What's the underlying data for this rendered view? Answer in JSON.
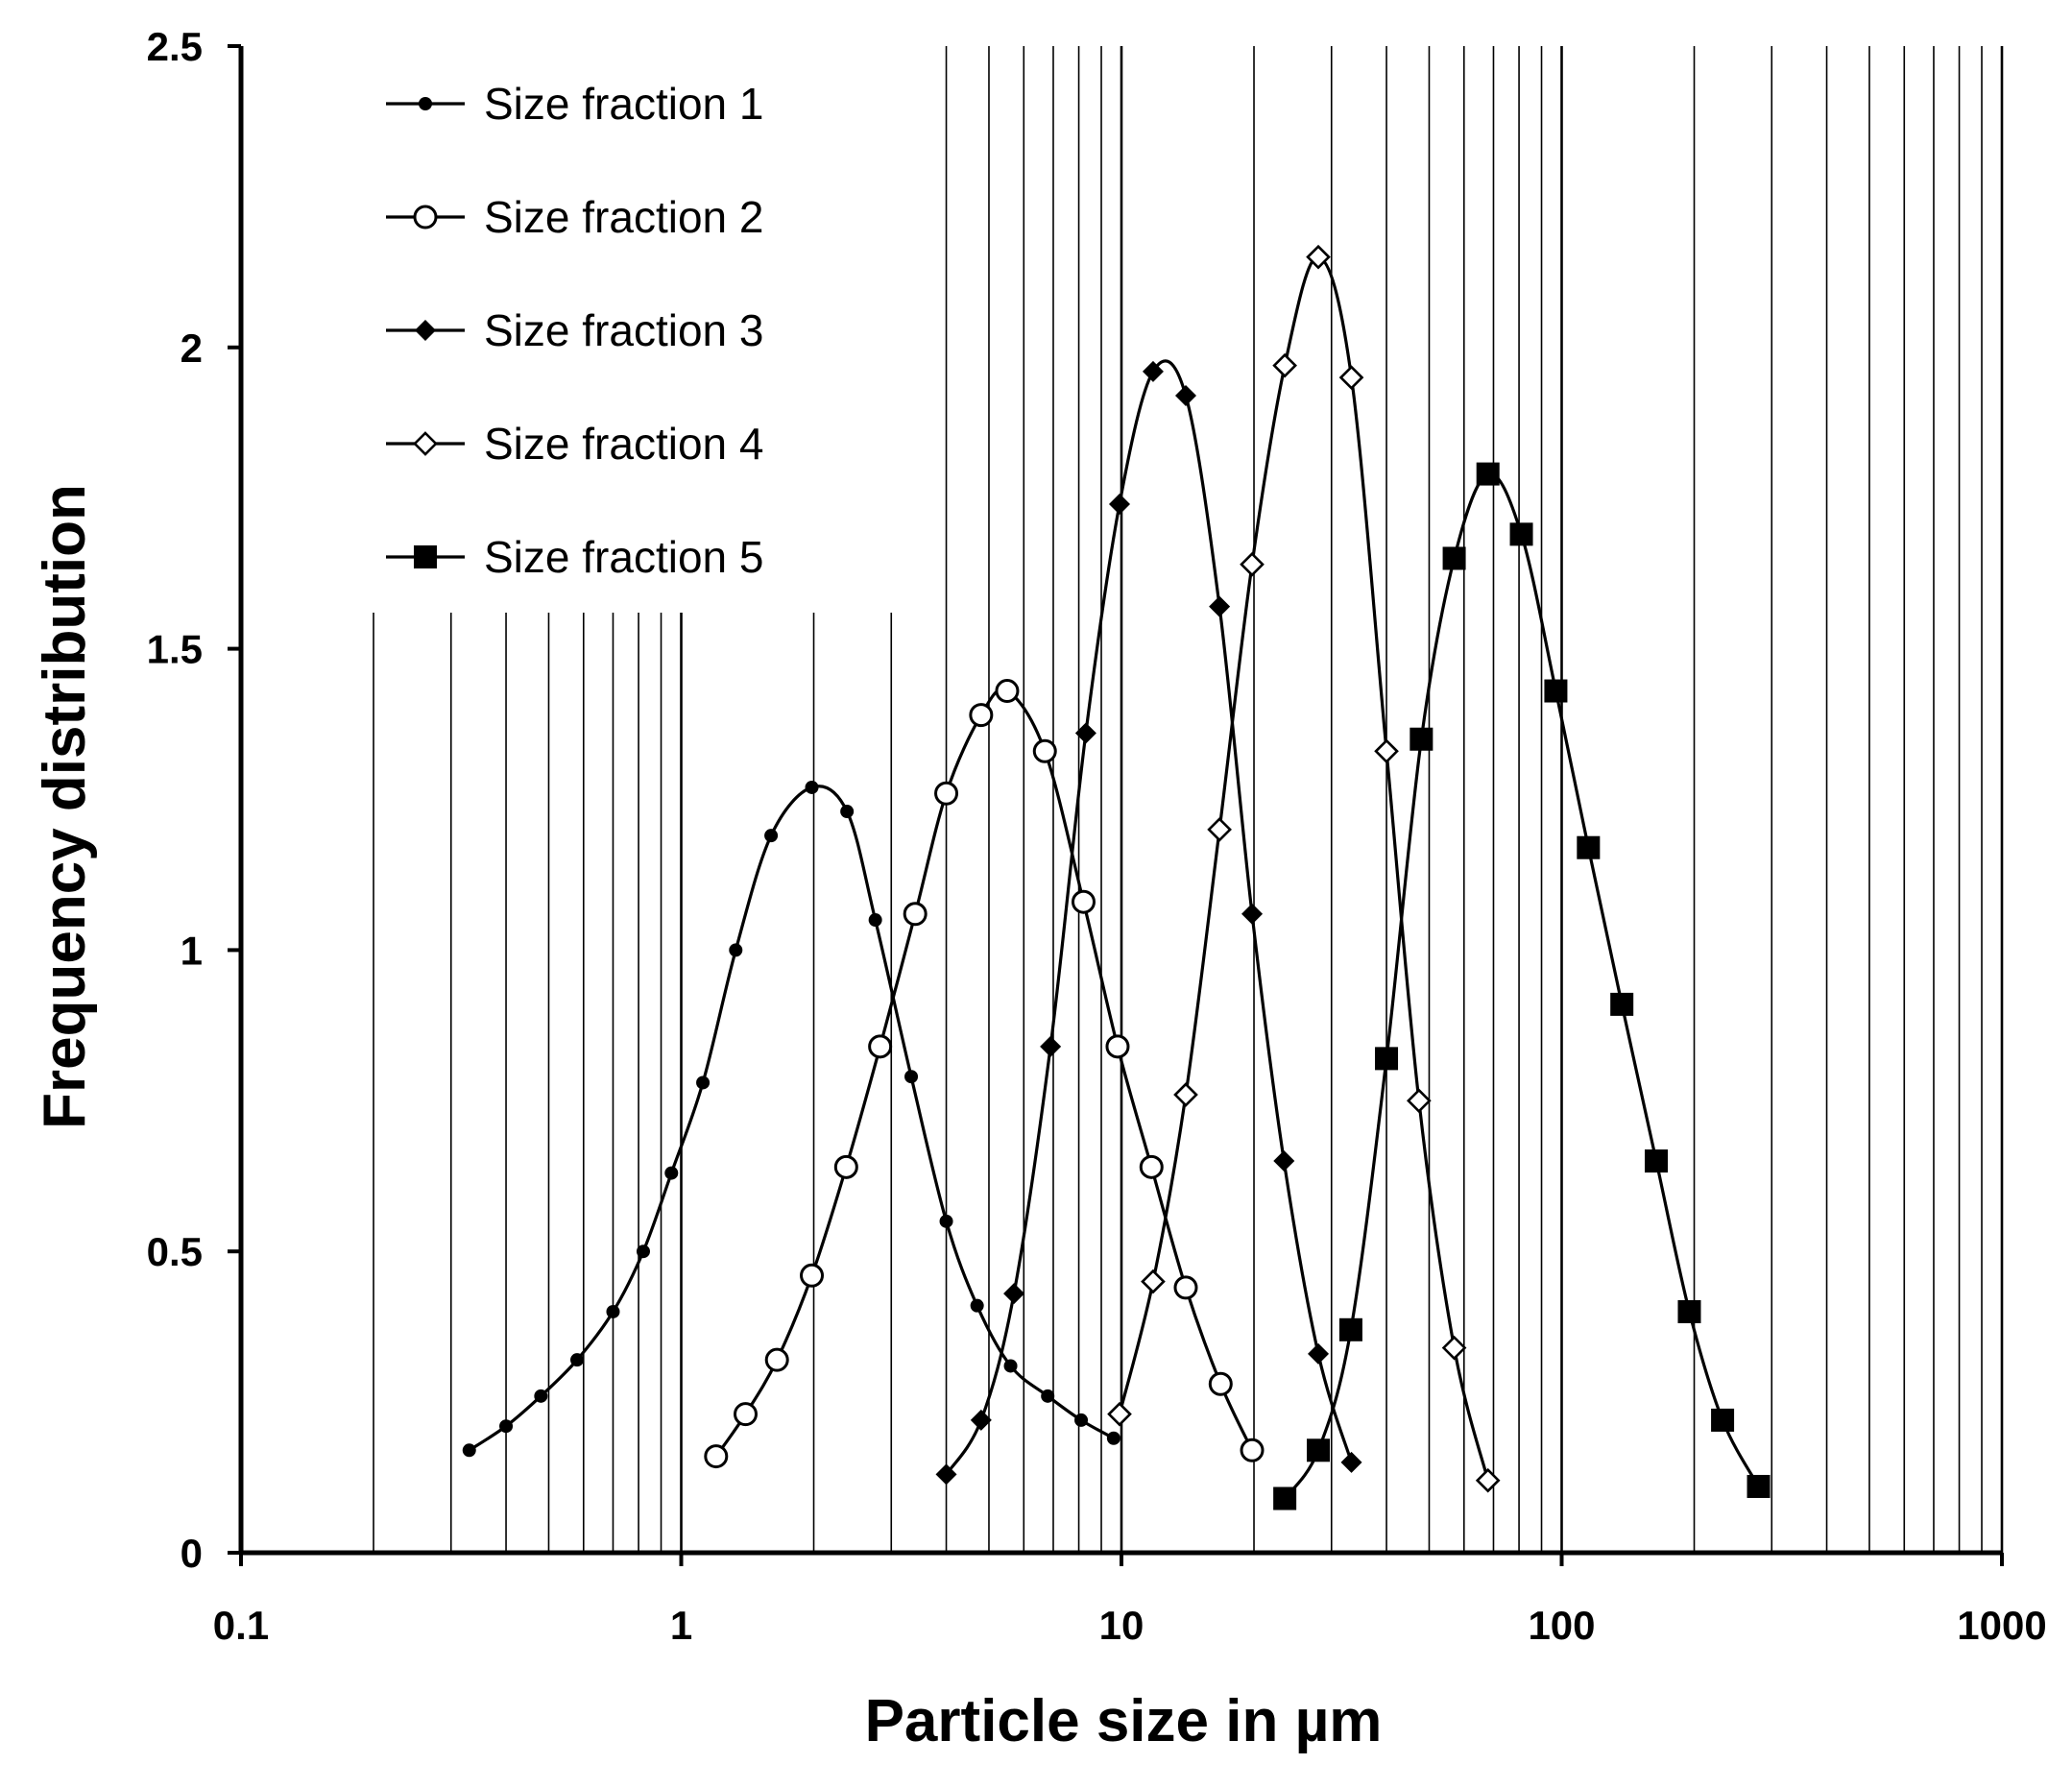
{
  "chart_data": {
    "type": "scatter",
    "title": "",
    "xlabel": "Particle size  in µm",
    "ylabel": "Frequency distribution",
    "xscale": "log",
    "xlim": [
      0.1,
      1000
    ],
    "ylim": [
      0,
      2.5
    ],
    "x_ticks": [
      "0.1",
      "1",
      "10",
      "100",
      "1000"
    ],
    "y_ticks": [
      "0",
      "0.5",
      "1",
      "1.5",
      "2",
      "2.5"
    ],
    "grid": "vertical log gridlines",
    "legend_position": "top-left",
    "colors": {
      "line": "#000000",
      "background": "#ffffff"
    },
    "series": [
      {
        "name": "Size fraction 1",
        "marker": "filled-circle",
        "points": [
          [
            0.33,
            0.17
          ],
          [
            0.4,
            0.21
          ],
          [
            0.48,
            0.26
          ],
          [
            0.58,
            0.32
          ],
          [
            0.7,
            0.4
          ],
          [
            0.82,
            0.5
          ],
          [
            0.95,
            0.63
          ],
          [
            1.12,
            0.78
          ],
          [
            1.33,
            1.0
          ],
          [
            1.6,
            1.19
          ],
          [
            1.98,
            1.27
          ],
          [
            2.38,
            1.23
          ],
          [
            2.76,
            1.05
          ],
          [
            3.33,
            0.79
          ],
          [
            4.0,
            0.55
          ],
          [
            4.7,
            0.41
          ],
          [
            5.6,
            0.31
          ],
          [
            6.8,
            0.26
          ],
          [
            8.1,
            0.22
          ],
          [
            9.6,
            0.19
          ]
        ]
      },
      {
        "name": "Size fraction 2",
        "marker": "open-circle",
        "points": [
          [
            1.2,
            0.16
          ],
          [
            1.4,
            0.23
          ],
          [
            1.65,
            0.32
          ],
          [
            1.98,
            0.46
          ],
          [
            2.37,
            0.64
          ],
          [
            2.83,
            0.84
          ],
          [
            3.4,
            1.06
          ],
          [
            4.0,
            1.26
          ],
          [
            4.8,
            1.39
          ],
          [
            5.5,
            1.43
          ],
          [
            6.7,
            1.33
          ],
          [
            8.2,
            1.08
          ],
          [
            9.8,
            0.84
          ],
          [
            11.7,
            0.64
          ],
          [
            14.0,
            0.44
          ],
          [
            16.8,
            0.28
          ],
          [
            19.8,
            0.17
          ]
        ]
      },
      {
        "name": "Size fraction 3",
        "marker": "filled-diamond",
        "points": [
          [
            4.0,
            0.13
          ],
          [
            4.8,
            0.22
          ],
          [
            5.7,
            0.43
          ],
          [
            6.9,
            0.84
          ],
          [
            8.3,
            1.36
          ],
          [
            9.9,
            1.74
          ],
          [
            11.8,
            1.96
          ],
          [
            14.0,
            1.92
          ],
          [
            16.7,
            1.57
          ],
          [
            19.8,
            1.06
          ],
          [
            23.4,
            0.65
          ],
          [
            28.0,
            0.33
          ],
          [
            33.3,
            0.15
          ]
        ]
      },
      {
        "name": "Size fraction 4",
        "marker": "open-diamond",
        "points": [
          [
            9.9,
            0.23
          ],
          [
            11.8,
            0.45
          ],
          [
            14.0,
            0.76
          ],
          [
            16.7,
            1.2
          ],
          [
            19.8,
            1.64
          ],
          [
            23.5,
            1.97
          ],
          [
            28.0,
            2.15
          ],
          [
            33.3,
            1.95
          ],
          [
            40.0,
            1.33
          ],
          [
            47.4,
            0.75
          ],
          [
            57.0,
            0.34
          ],
          [
            68.0,
            0.12
          ]
        ]
      },
      {
        "name": "Size fraction 5",
        "marker": "filled-square",
        "points": [
          [
            23.5,
            0.09
          ],
          [
            28.0,
            0.17
          ],
          [
            33.2,
            0.37
          ],
          [
            40.0,
            0.82
          ],
          [
            48.0,
            1.35
          ],
          [
            57.0,
            1.65
          ],
          [
            68.0,
            1.79
          ],
          [
            81.0,
            1.69
          ],
          [
            97.0,
            1.43
          ],
          [
            115.0,
            1.17
          ],
          [
            137.0,
            0.91
          ],
          [
            164.0,
            0.65
          ],
          [
            195.0,
            0.4
          ],
          [
            232.0,
            0.22
          ],
          [
            280.0,
            0.11
          ]
        ]
      }
    ]
  }
}
